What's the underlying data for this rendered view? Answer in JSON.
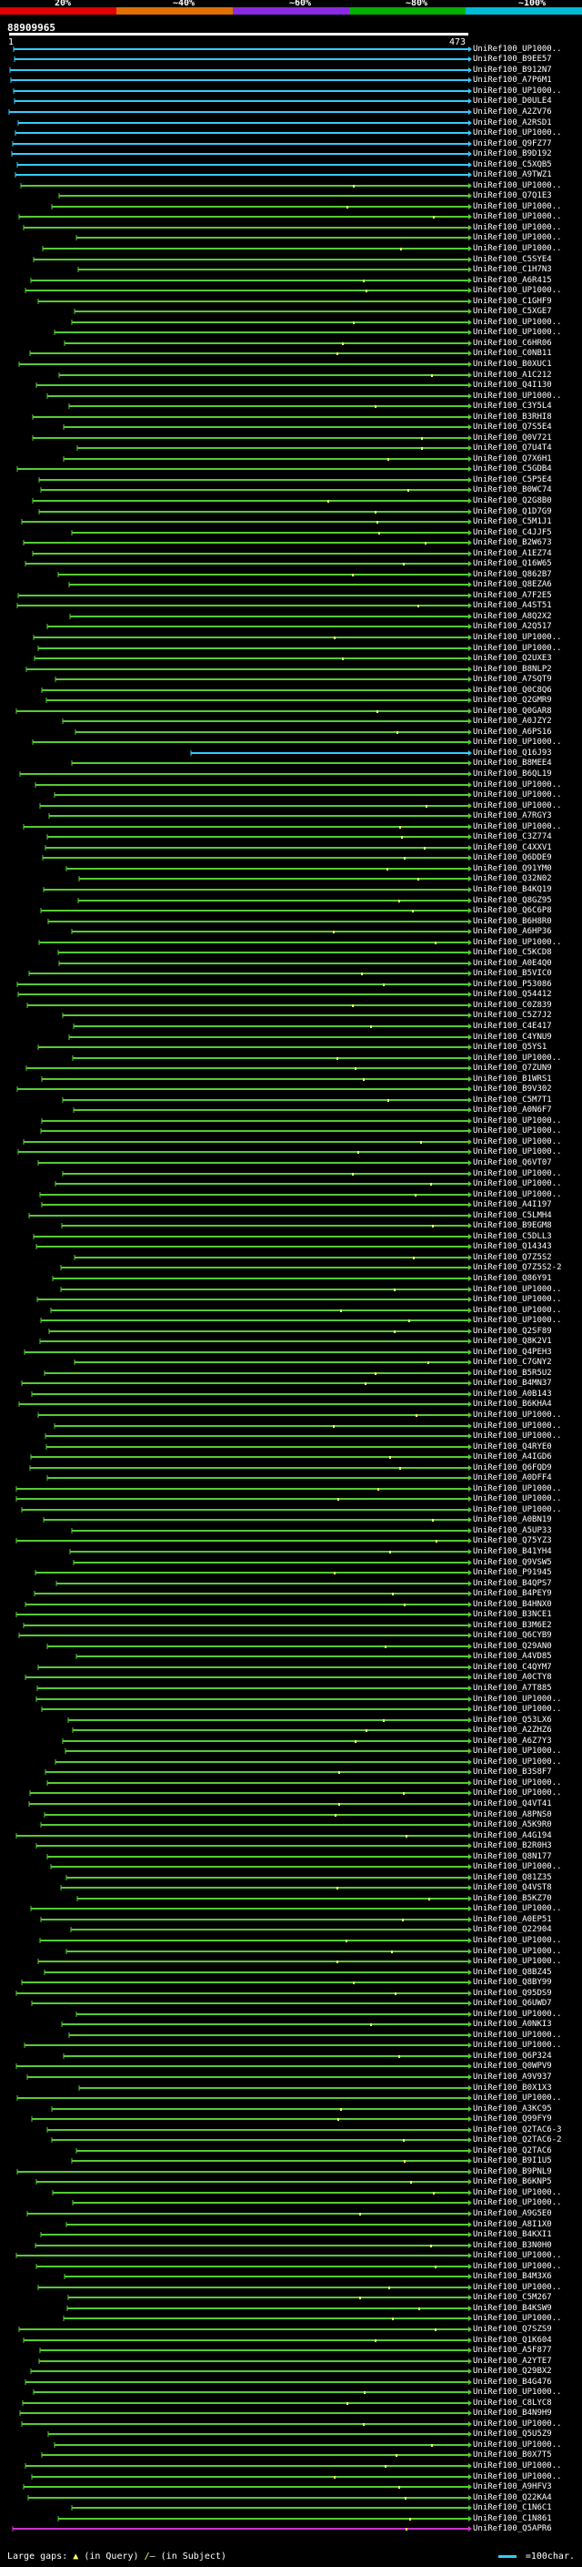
{
  "scale": {
    "labels": [
      "20%",
      "~40%",
      "~60%",
      "~80%",
      "~100%"
    ],
    "colors": [
      "#e00000",
      "#e07000",
      "#8a2be2",
      "#00b000",
      "#00bcd4"
    ]
  },
  "header": {
    "query_id": "88909965",
    "start_pos": "1",
    "end_pos": "473"
  },
  "colors": {
    "query": "#ffffff",
    "high": "#33ccff",
    "mid": "#55cc33",
    "low": "#cc33cc",
    "gap": "#ffff66"
  },
  "hits": [
    "UniRef100_UP1000..",
    "UniRef100_B9EE57",
    "UniRef100_B912N7",
    "UniRef100_A7P6M1",
    "UniRef100_UP1000..",
    "UniRef100_D0ULE4",
    "UniRef100_A2ZV76",
    "UniRef100_A2RSD1",
    "UniRef100_UP1000..",
    "UniRef100_Q9FZ77",
    "UniRef100_B9D192",
    "UniRef100_C5XQB5",
    "UniRef100_A9TWZ1",
    "UniRef100_UP1000..",
    "UniRef100_Q7Q1E3",
    "UniRef100_UP1000..",
    "UniRef100_UP1000..",
    "UniRef100_UP1000..",
    "UniRef100_UP1000..",
    "UniRef100_UP1000..",
    "UniRef100_C5SYE4",
    "UniRef100_C1H7N3",
    "UniRef100_A6R415",
    "UniRef100_UP1000..",
    "UniRef100_C1GHF9",
    "UniRef100_C5XGE7",
    "UniRef100_UP1000..",
    "UniRef100_UP1000..",
    "UniRef100_C6HR06",
    "UniRef100_C0NB11",
    "UniRef100_B0XUC1",
    "UniRef100_A1C212",
    "UniRef100_Q4I130",
    "UniRef100_UP1000..",
    "UniRef100_C3Y5L4",
    "UniRef100_B3RHI8",
    "UniRef100_Q7S5E4",
    "UniRef100_Q0V721",
    "UniRef100_Q7U4T4",
    "UniRef100_Q7X6H1",
    "UniRef100_C5GDB4",
    "UniRef100_C5P5E4",
    "UniRef100_B0WC74",
    "UniRef100_Q2G8B0",
    "UniRef100_Q1D7G9",
    "UniRef100_C5M1J1",
    "UniRef100_C4JJF5",
    "UniRef100_B2W673",
    "UniRef100_A1EZ74",
    "UniRef100_Q16W65",
    "UniRef100_Q862B7",
    "UniRef100_Q8EZA6",
    "UniRef100_A7F2E5",
    "UniRef100_A4ST51",
    "UniRef100_A8Q2X2",
    "UniRef100_A2Q517",
    "UniRef100_UP1000..",
    "UniRef100_UP1000..",
    "UniRef100_Q2UXE3",
    "UniRef100_B8NLP2",
    "UniRef100_A7SQT9",
    "UniRef100_Q0C8Q6",
    "UniRef100_Q2GMR9",
    "UniRef100_Q0GAR8",
    "UniRef100_A0JZY2",
    "UniRef100_A6PS16",
    "UniRef100_UP1000..",
    "UniRef100_Q16J93",
    "UniRef100_B8MEE4",
    "UniRef100_B6QL19",
    "UniRef100_UP1000..",
    "UniRef100_UP1000..",
    "UniRef100_UP1000..",
    "UniRef100_A7RGY3",
    "UniRef100_UP1000..",
    "UniRef100_C3Z774",
    "UniRef100_C4XXV1",
    "UniRef100_Q6DDE9",
    "UniRef100_Q91YM0",
    "UniRef100_Q32N02",
    "UniRef100_B4KQ19",
    "UniRef100_Q8GZ95",
    "UniRef100_Q6C6P8",
    "UniRef100_B6H8R0",
    "UniRef100_A6HP36",
    "UniRef100_UP1000..",
    "UniRef100_C5KCD8",
    "UniRef100_A0E4Q0",
    "UniRef100_B5VIC0",
    "UniRef100_P53086",
    "UniRef100_Q54412",
    "UniRef100_C0Z839",
    "UniRef100_C5Z7J2",
    "UniRef100_C4E417",
    "UniRef100_C4YNU9",
    "UniRef100_Q5YS1",
    "UniRef100_UP1000..",
    "UniRef100_Q7ZUN9",
    "UniRef100_B1WRS1",
    "UniRef100_B9V302",
    "UniRef100_C5M7T1",
    "UniRef100_A0N6F7",
    "UniRef100_UP1000..",
    "UniRef100_UP1000..",
    "UniRef100_UP1000..",
    "UniRef100_UP1000..",
    "UniRef100_Q6VT07",
    "UniRef100_UP1000..",
    "UniRef100_UP1000..",
    "UniRef100_UP1000..",
    "UniRef100_A4I197",
    "UniRef100_C5LMH4",
    "UniRef100_B9EGM8",
    "UniRef100_C5DLL3",
    "UniRef100_Q14343",
    "UniRef100_Q7Z5S2",
    "UniRef100_Q7Z5S2-2",
    "UniRef100_Q86Y91",
    "UniRef100_UP1000..",
    "UniRef100_UP1000..",
    "UniRef100_UP1000..",
    "UniRef100_UP1000..",
    "UniRef100_Q2SF89",
    "UniRef100_Q8K2V1",
    "UniRef100_Q4PEH3",
    "UniRef100_C7GNY2",
    "UniRef100_B5R5U2",
    "UniRef100_B4MN37",
    "UniRef100_A0B143",
    "UniRef100_B6KHA4",
    "UniRef100_UP1000..",
    "UniRef100_UP1000..",
    "UniRef100_UP1000..",
    "UniRef100_Q4RYE0",
    "UniRef100_A4IGD6",
    "UniRef100_Q6FQD9",
    "UniRef100_A0DFF4",
    "UniRef100_UP1000..",
    "UniRef100_UP1000..",
    "UniRef100_UP1000..",
    "UniRef100_A0BN19",
    "UniRef100_A5UP33",
    "UniRef100_Q75YZ3",
    "UniRef100_B41YH4",
    "UniRef100_Q9VSW5",
    "UniRef100_P91945",
    "UniRef100_B4QPS7",
    "UniRef100_B4PEY9",
    "UniRef100_B4HNX0",
    "UniRef100_B3NCE1",
    "UniRef100_B3M6E2",
    "UniRef100_Q6CYB9",
    "UniRef100_Q29AN0",
    "UniRef100_A4VD85",
    "UniRef100_C4QYM7",
    "UniRef100_A0CTY8",
    "UniRef100_A7T885",
    "UniRef100_UP1000..",
    "UniRef100_UP1000..",
    "UniRef100_Q53LX6",
    "UniRef100_A2ZHZ6",
    "UniRef100_A6Z7Y3",
    "UniRef100_UP1000..",
    "UniRef100_UP1000..",
    "UniRef100_B3S8F7",
    "UniRef100_UP1000..",
    "UniRef100_UP1000..",
    "UniRef100_Q4VT41",
    "UniRef100_A8PNS0",
    "UniRef100_A5K9R0",
    "UniRef100_A4G194",
    "UniRef100_B2R0H3",
    "UniRef100_Q8N177",
    "UniRef100_UP1000..",
    "UniRef100_Q81Z35",
    "UniRef100_Q4VST8",
    "UniRef100_B5KZ70",
    "UniRef100_UP1000..",
    "UniRef100_A0EP51",
    "UniRef100_Q22904",
    "UniRef100_UP1000..",
    "UniRef100_UP1000..",
    "UniRef100_UP1000..",
    "UniRef100_Q8BZ45",
    "UniRef100_Q8BY99",
    "UniRef100_Q95DS9",
    "UniRef100_Q6UWD7",
    "UniRef100_UP1000..",
    "UniRef100_A0NKI3",
    "UniRef100_UP1000..",
    "UniRef100_UP1000..",
    "UniRef100_Q6P324",
    "UniRef100_Q0WPV9",
    "UniRef100_A9V937",
    "UniRef100_B0X1X3",
    "UniRef100_UP1000..",
    "UniRef100_A3KC95",
    "UniRef100_Q99FY9",
    "UniRef100_Q2TAC6-3",
    "UniRef100_Q2TAC6-2",
    "UniRef100_Q2TAC6",
    "UniRef100_B9I1U5",
    "UniRef100_B9PNL9",
    "UniRef100_B6KNP5",
    "UniRef100_UP1000..",
    "UniRef100_UP1000..",
    "UniRef100_A9G5E0",
    "UniRef100_A8I1X0",
    "UniRef100_B4KXI1",
    "UniRef100_B3N0H0",
    "UniRef100_UP1000..",
    "UniRef100_UP1000..",
    "UniRef100_B4M3X6",
    "UniRef100_UP1000..",
    "UniRef100_C5M267",
    "UniRef100_B4KSW9",
    "UniRef100_UP1000..",
    "UniRef100_Q7SZS9",
    "UniRef100_Q1K604",
    "UniRef100_A5F877",
    "UniRef100_A2YTE7",
    "UniRef100_Q29BX2",
    "UniRef100_B4G476",
    "UniRef100_UP1000..",
    "UniRef100_C8LYC8",
    "UniRef100_B4N9H9",
    "UniRef100_UP1000..",
    "UniRef100_Q5U5Z9",
    "UniRef100_UP1000..",
    "UniRef100_B0X7T5",
    "UniRef100_UP1000..",
    "UniRef100_UP1000..",
    "UniRef100_A9HFV3",
    "UniRef100_Q22KA4",
    "UniRef100_C1N6C1",
    "UniRef100_C1N861",
    "UniRef100_Q5APR6"
  ],
  "legend": {
    "left_label": "Large gaps:",
    "gap_query": "(in Query)",
    "gap_subject": "(in Subject)",
    "right_label": "=100char."
  }
}
